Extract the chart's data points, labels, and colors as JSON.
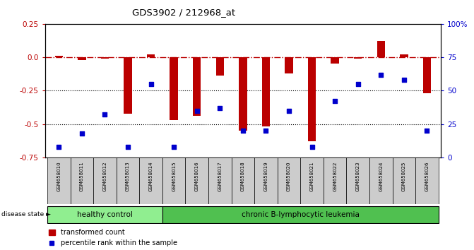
{
  "title": "GDS3902 / 212968_at",
  "samples": [
    "GSM658010",
    "GSM658011",
    "GSM658012",
    "GSM658013",
    "GSM658014",
    "GSM658015",
    "GSM658016",
    "GSM658017",
    "GSM658018",
    "GSM658019",
    "GSM658020",
    "GSM658021",
    "GSM658022",
    "GSM658023",
    "GSM658024",
    "GSM658025",
    "GSM658026"
  ],
  "bar_values": [
    0.01,
    -0.02,
    -0.01,
    -0.42,
    0.02,
    -0.47,
    -0.44,
    -0.14,
    -0.55,
    -0.52,
    -0.12,
    -0.63,
    -0.05,
    -0.01,
    0.12,
    0.02,
    -0.27
  ],
  "dot_values": [
    8,
    18,
    32,
    8,
    55,
    8,
    35,
    37,
    20,
    20,
    35,
    8,
    42,
    55,
    62,
    58,
    20
  ],
  "healthy_count": 5,
  "healthy_label": "healthy control",
  "leukemia_label": "chronic B-lymphocytic leukemia",
  "disease_state_label": "disease state",
  "legend_bar": "transformed count",
  "legend_dot": "percentile rank within the sample",
  "ylim_left": [
    -0.75,
    0.25
  ],
  "ylim_right": [
    0,
    100
  ],
  "yticks_left": [
    -0.75,
    -0.5,
    -0.25,
    0.0,
    0.25
  ],
  "yticks_right": [
    0,
    25,
    50,
    75,
    100
  ],
  "ytick_labels_right": [
    "0",
    "25",
    "50",
    "75",
    "100%"
  ],
  "bar_color": "#BB0000",
  "dot_color": "#0000CC",
  "hline_color": "#BB0000",
  "dotline_vals": [
    -0.25,
    -0.5
  ],
  "background_color": "#ffffff",
  "healthy_bg": "#90EE90",
  "leukemia_bg": "#50C050",
  "sample_bg": "#CCCCCC"
}
